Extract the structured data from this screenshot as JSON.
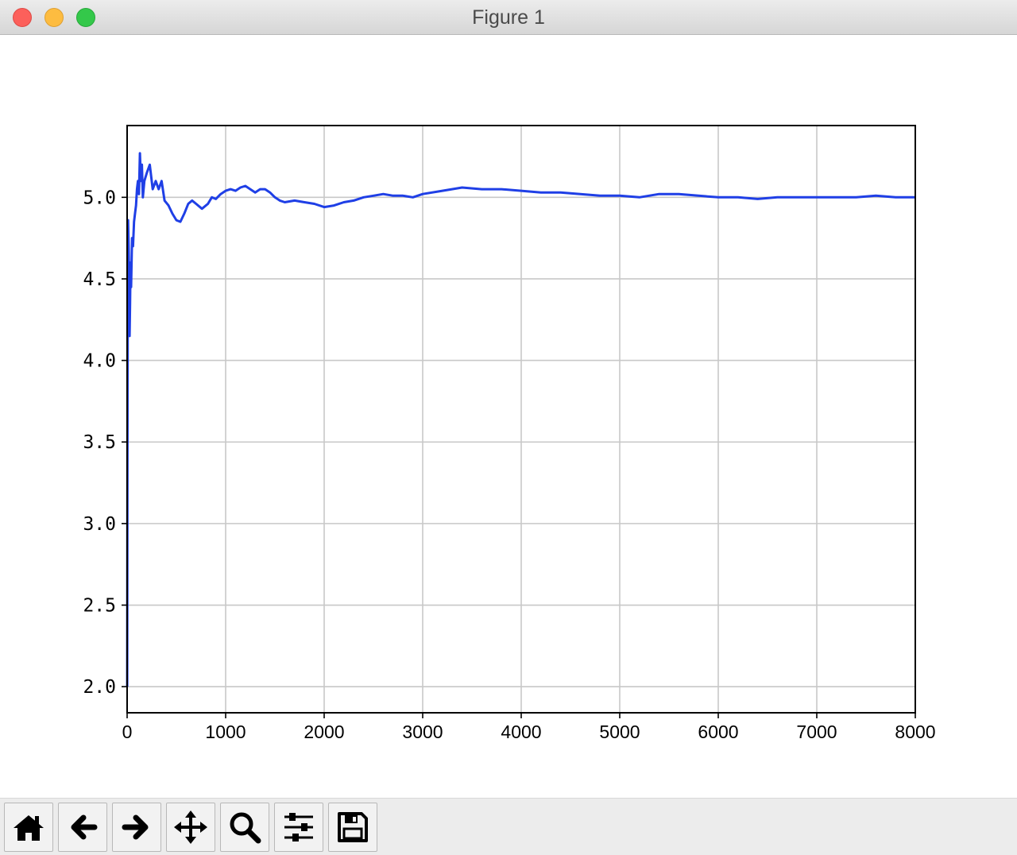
{
  "window": {
    "title": "Figure 1"
  },
  "toolbar": {
    "buttons": [
      {
        "name": "home",
        "icon": "home-icon"
      },
      {
        "name": "back",
        "icon": "arrow-left-icon"
      },
      {
        "name": "forward",
        "icon": "arrow-right-icon"
      },
      {
        "name": "pan",
        "icon": "move-icon"
      },
      {
        "name": "zoom",
        "icon": "magnifier-icon"
      },
      {
        "name": "configure-subplots",
        "icon": "sliders-icon"
      },
      {
        "name": "save",
        "icon": "floppy-disk-icon"
      }
    ]
  },
  "chart_data": {
    "type": "line",
    "title": "",
    "xlabel": "",
    "ylabel": "",
    "xlim": [
      0,
      8000
    ],
    "ylim": [
      1.84,
      5.44
    ],
    "xticks": [
      0,
      1000,
      2000,
      3000,
      4000,
      5000,
      6000,
      7000,
      8000
    ],
    "xtick_labels": [
      "0",
      "1000",
      "2000",
      "3000",
      "4000",
      "5000",
      "6000",
      "7000",
      "8000"
    ],
    "yticks": [
      2.0,
      2.5,
      3.0,
      3.5,
      4.0,
      4.5,
      5.0
    ],
    "ytick_labels": [
      "2.0",
      "2.5",
      "3.0",
      "3.5",
      "4.0",
      "4.5",
      "5.0"
    ],
    "grid": true,
    "line_color": "#1f3fe6",
    "series": [
      {
        "x": [
          1,
          3,
          6,
          10,
          15,
          20,
          25,
          30,
          35,
          40,
          50,
          60,
          70,
          80,
          90,
          100,
          110,
          120,
          130,
          140,
          150,
          160,
          175,
          200,
          230,
          260,
          290,
          320,
          350,
          380,
          420,
          460,
          500,
          540,
          580,
          620,
          660,
          700,
          760,
          820,
          860,
          900,
          950,
          1000,
          1050,
          1100,
          1150,
          1200,
          1250,
          1300,
          1350,
          1400,
          1450,
          1500,
          1550,
          1600,
          1700,
          1800,
          1900,
          2000,
          2100,
          2200,
          2300,
          2400,
          2500,
          2600,
          2700,
          2800,
          2900,
          3000,
          3200,
          3400,
          3600,
          3800,
          4000,
          4200,
          4400,
          4600,
          4800,
          5000,
          5200,
          5400,
          5600,
          5800,
          6000,
          6200,
          6400,
          6600,
          6800,
          7000,
          7200,
          7400,
          7600,
          7800,
          8000
        ],
        "y": [
          2.0,
          3.4,
          4.1,
          4.86,
          4.7,
          4.5,
          4.15,
          4.35,
          4.6,
          4.45,
          4.75,
          4.7,
          4.85,
          4.9,
          4.95,
          5.05,
          5.1,
          5.02,
          5.27,
          5.1,
          5.2,
          5.0,
          5.1,
          5.15,
          5.2,
          5.05,
          5.1,
          5.05,
          5.1,
          4.98,
          4.95,
          4.9,
          4.86,
          4.85,
          4.9,
          4.96,
          4.98,
          4.96,
          4.93,
          4.96,
          5.0,
          4.99,
          5.02,
          5.04,
          5.05,
          5.04,
          5.06,
          5.07,
          5.05,
          5.03,
          5.05,
          5.05,
          5.03,
          5.0,
          4.98,
          4.97,
          4.98,
          4.97,
          4.96,
          4.94,
          4.95,
          4.97,
          4.98,
          5.0,
          5.01,
          5.02,
          5.01,
          5.01,
          5.0,
          5.02,
          5.04,
          5.06,
          5.05,
          5.05,
          5.04,
          5.03,
          5.03,
          5.02,
          5.01,
          5.01,
          5.0,
          5.02,
          5.02,
          5.01,
          5.0,
          5.0,
          4.99,
          5.0,
          5.0,
          5.0,
          5.0,
          5.0,
          5.01,
          5.0,
          5.0
        ]
      }
    ]
  }
}
